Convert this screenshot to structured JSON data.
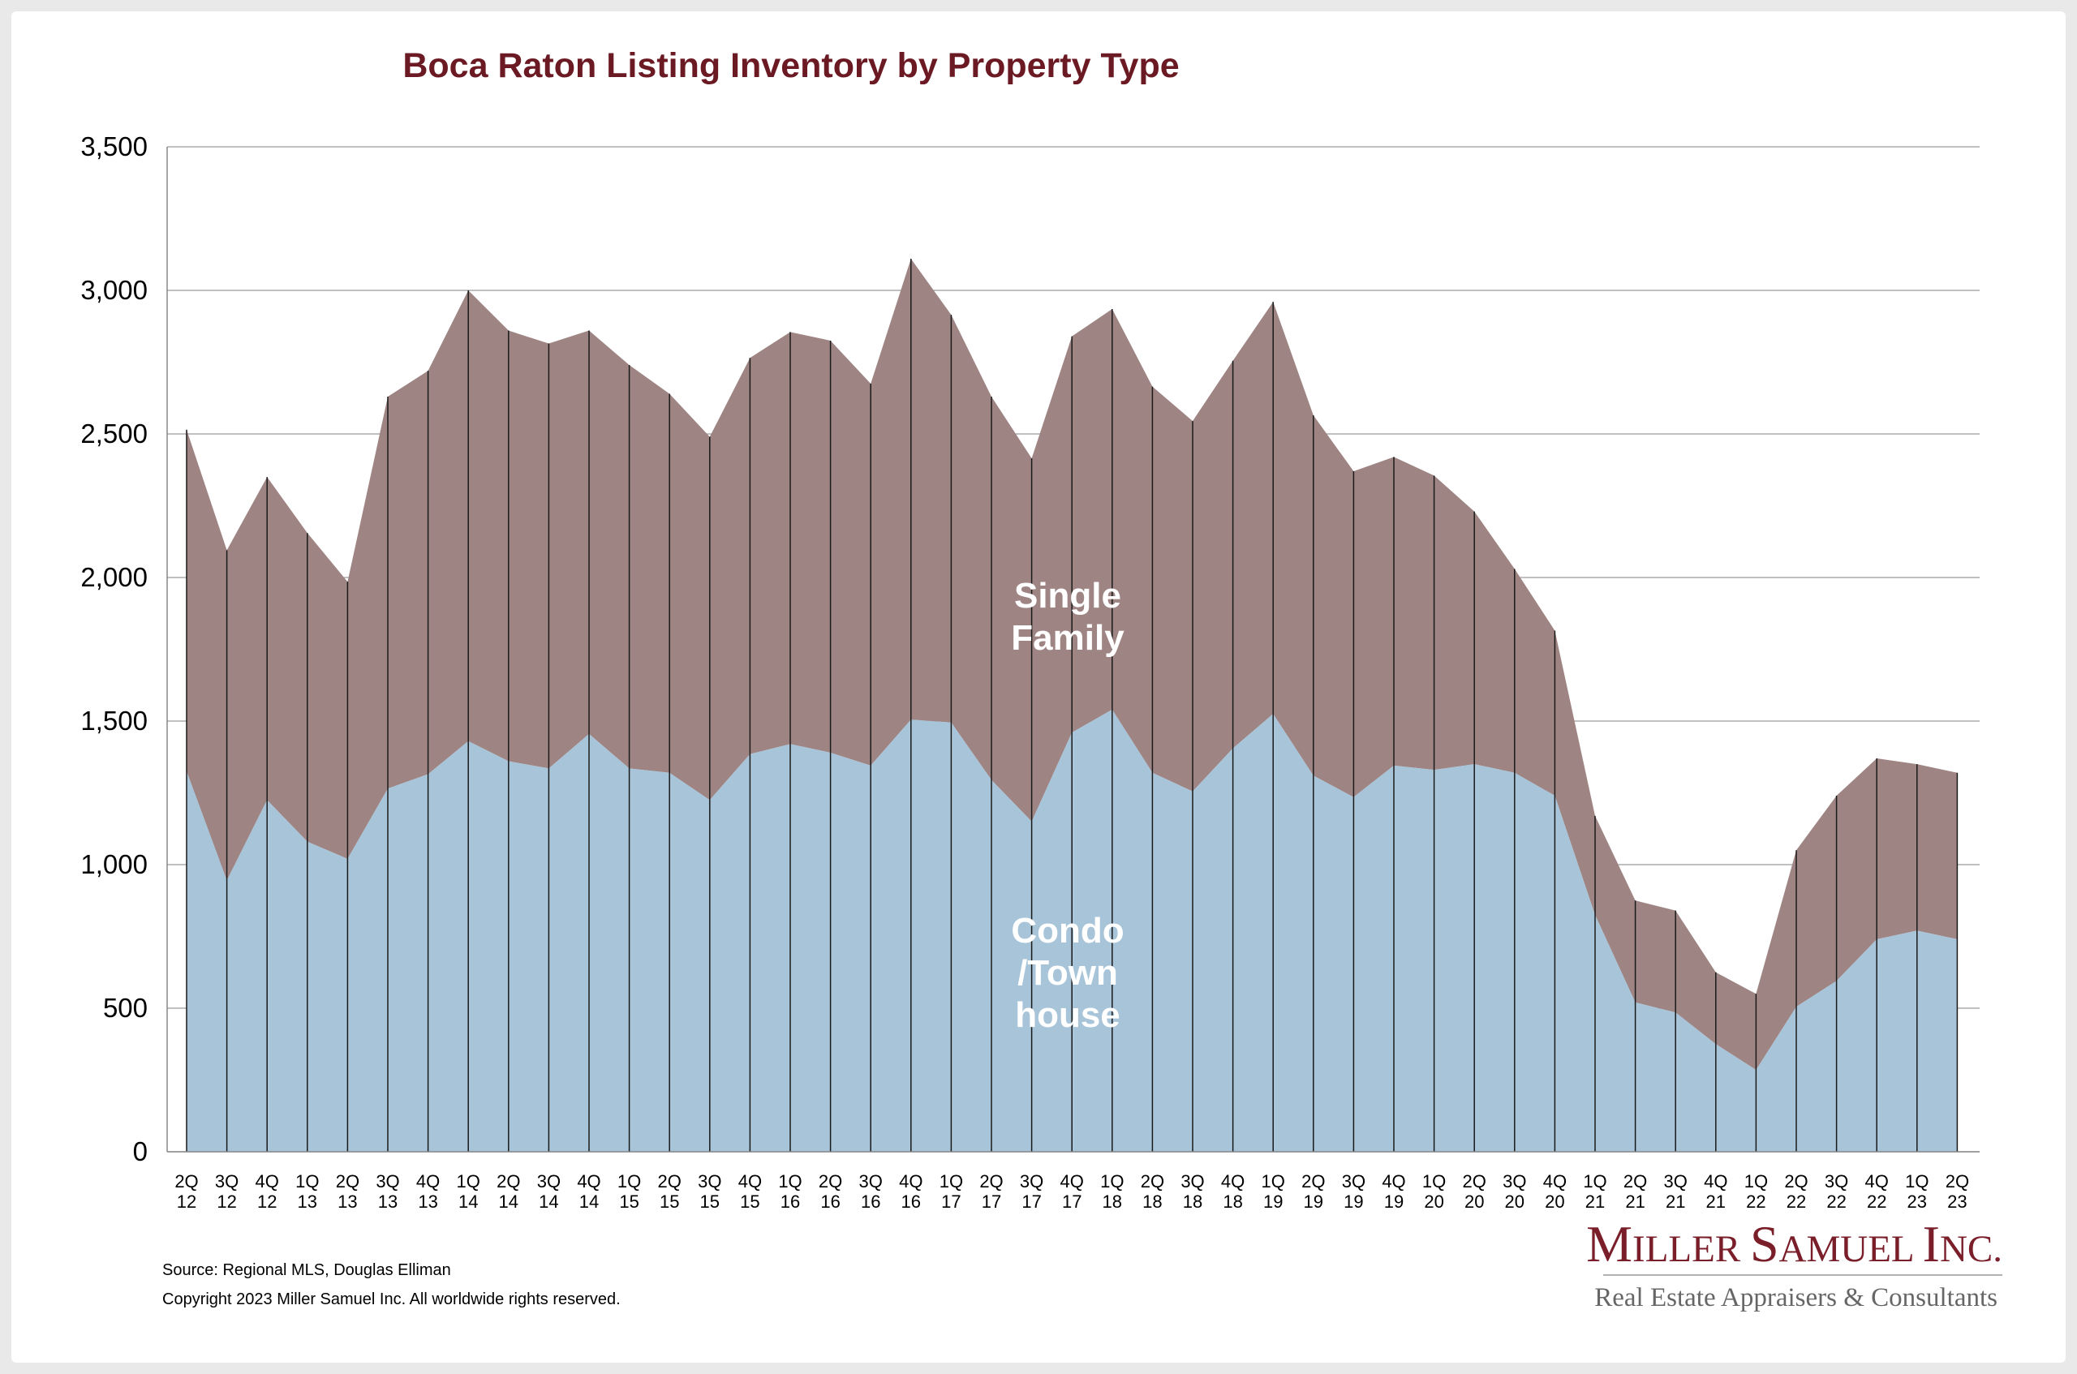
{
  "chart_data": {
    "type": "area",
    "stacked": true,
    "title": "Boca Raton Listing Inventory by Property Type",
    "xlabel": "",
    "ylabel": "",
    "ylim": [
      0,
      3500
    ],
    "yticks": [
      0,
      500,
      1000,
      1500,
      2000,
      2500,
      3000,
      3500
    ],
    "ytick_labels": [
      "0",
      "500",
      "1,000",
      "1,500",
      "2,000",
      "2,500",
      "3,000",
      "3,500"
    ],
    "grid": true,
    "legend": "none",
    "categories": [
      {
        "q": "2Q",
        "y": "12"
      },
      {
        "q": "3Q",
        "y": "12"
      },
      {
        "q": "4Q",
        "y": "12"
      },
      {
        "q": "1Q",
        "y": "13"
      },
      {
        "q": "2Q",
        "y": "13"
      },
      {
        "q": "3Q",
        "y": "13"
      },
      {
        "q": "4Q",
        "y": "13"
      },
      {
        "q": "1Q",
        "y": "14"
      },
      {
        "q": "2Q",
        "y": "14"
      },
      {
        "q": "3Q",
        "y": "14"
      },
      {
        "q": "4Q",
        "y": "14"
      },
      {
        "q": "1Q",
        "y": "15"
      },
      {
        "q": "2Q",
        "y": "15"
      },
      {
        "q": "3Q",
        "y": "15"
      },
      {
        "q": "4Q",
        "y": "15"
      },
      {
        "q": "1Q",
        "y": "16"
      },
      {
        "q": "2Q",
        "y": "16"
      },
      {
        "q": "3Q",
        "y": "16"
      },
      {
        "q": "4Q",
        "y": "16"
      },
      {
        "q": "1Q",
        "y": "17"
      },
      {
        "q": "2Q",
        "y": "17"
      },
      {
        "q": "3Q",
        "y": "17"
      },
      {
        "q": "4Q",
        "y": "17"
      },
      {
        "q": "1Q",
        "y": "18"
      },
      {
        "q": "2Q",
        "y": "18"
      },
      {
        "q": "3Q",
        "y": "18"
      },
      {
        "q": "4Q",
        "y": "18"
      },
      {
        "q": "1Q",
        "y": "19"
      },
      {
        "q": "2Q",
        "y": "19"
      },
      {
        "q": "3Q",
        "y": "19"
      },
      {
        "q": "4Q",
        "y": "19"
      },
      {
        "q": "1Q",
        "y": "20"
      },
      {
        "q": "2Q",
        "y": "20"
      },
      {
        "q": "3Q",
        "y": "20"
      },
      {
        "q": "4Q",
        "y": "20"
      },
      {
        "q": "1Q",
        "y": "21"
      },
      {
        "q": "2Q",
        "y": "21"
      },
      {
        "q": "3Q",
        "y": "21"
      },
      {
        "q": "4Q",
        "y": "21"
      },
      {
        "q": "1Q",
        "y": "22"
      },
      {
        "q": "2Q",
        "y": "22"
      },
      {
        "q": "3Q",
        "y": "22"
      },
      {
        "q": "4Q",
        "y": "22"
      },
      {
        "q": "1Q",
        "y": "23"
      },
      {
        "q": "2Q",
        "y": "23"
      }
    ],
    "series": [
      {
        "name": "Condo/Townhouse",
        "color": "#a7c4d9",
        "values": [
          1325,
          945,
          1225,
          1080,
          1020,
          1265,
          1315,
          1430,
          1360,
          1335,
          1455,
          1335,
          1320,
          1225,
          1385,
          1420,
          1390,
          1345,
          1505,
          1495,
          1295,
          1150,
          1460,
          1540,
          1320,
          1255,
          1405,
          1525,
          1310,
          1235,
          1345,
          1330,
          1350,
          1320,
          1240,
          825,
          520,
          485,
          375,
          285,
          505,
          595,
          740,
          770,
          740
        ]
      },
      {
        "name": "Single Family",
        "color": "#9e8584",
        "values": [
          1190,
          1150,
          1125,
          1075,
          965,
          1365,
          1405,
          1570,
          1500,
          1480,
          1405,
          1405,
          1320,
          1265,
          1380,
          1435,
          1435,
          1330,
          1605,
          1420,
          1335,
          1265,
          1380,
          1395,
          1345,
          1290,
          1350,
          1435,
          1255,
          1135,
          1075,
          1025,
          880,
          710,
          575,
          345,
          355,
          355,
          250,
          265,
          545,
          645,
          630,
          580,
          580
        ]
      }
    ],
    "area_labels": {
      "single_family": [
        "Single",
        "Family"
      ],
      "condo": [
        "Condo",
        "/Town",
        "house"
      ]
    }
  },
  "footer": {
    "source": "Source: Regional MLS, Douglas Elliman",
    "copyright": "Copyright 2023 Miller Samuel Inc.  All worldwide rights reserved."
  },
  "logo": {
    "name_parts": [
      {
        "text": "M",
        "big": true
      },
      {
        "text": "ILLER ",
        "big": false
      },
      {
        "text": "S",
        "big": true
      },
      {
        "text": "AMUEL ",
        "big": false
      },
      {
        "text": "I",
        "big": true
      },
      {
        "text": "NC.",
        "big": false
      }
    ],
    "tagline": "Real Estate Appraisers & Consultants"
  }
}
